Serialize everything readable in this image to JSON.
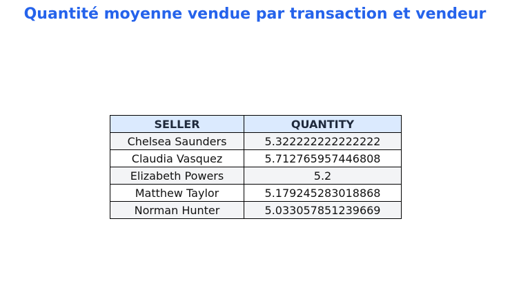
{
  "chart_data": {
    "type": "table",
    "title": "Quantité moyenne vendue par transaction et vendeur",
    "columns": [
      "SELLER",
      "QUANTITY"
    ],
    "rows": [
      [
        "Chelsea Saunders",
        "5.322222222222222"
      ],
      [
        "Claudia Vasquez",
        "5.712765957446808"
      ],
      [
        "Elizabeth Powers",
        "5.2"
      ],
      [
        "Matthew Taylor",
        "5.179245283018868"
      ],
      [
        "Norman Hunter",
        "5.033057851239669"
      ]
    ]
  },
  "colors": {
    "title": "#2563eb",
    "header_bg": "#dbeafe",
    "header_text": "#1e293b",
    "row_alt_bg": "#f3f4f6",
    "border": "#000000"
  }
}
